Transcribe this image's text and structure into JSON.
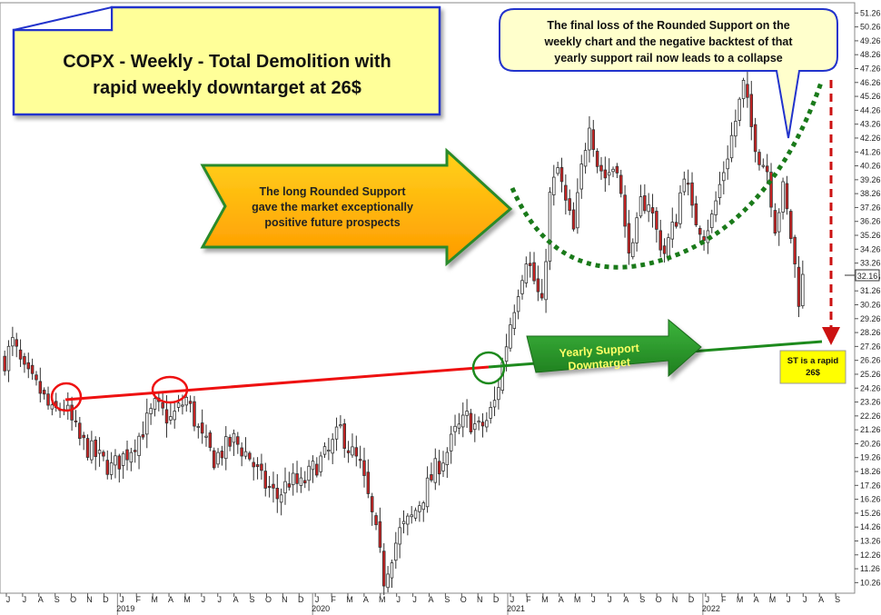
{
  "chart_data": {
    "type": "candlestick",
    "title": "COPX - Weekly - Total Demolition with rapid weekly downtarget at 26$",
    "yticks": [
      10.26,
      11.26,
      12.26,
      13.26,
      14.26,
      15.26,
      16.26,
      17.26,
      18.26,
      19.26,
      20.26,
      21.26,
      22.26,
      23.26,
      24.26,
      25.26,
      26.26,
      27.26,
      28.26,
      29.26,
      30.26,
      31.26,
      32.26,
      33.26,
      34.26,
      35.26,
      36.26,
      37.26,
      38.26,
      39.26,
      40.26,
      41.26,
      42.26,
      43.26,
      44.26,
      45.26,
      46.26,
      47.26,
      48.26,
      49.26,
      50.26,
      51.26
    ],
    "ylim": [
      9.5,
      52
    ],
    "last_price": "32.16",
    "month_labels": [
      "J",
      "J",
      "A",
      "S",
      "O",
      "N",
      "D",
      "J",
      "F",
      "M",
      "A",
      "M",
      "J",
      "J",
      "A",
      "S",
      "O",
      "N",
      "D",
      "J",
      "F",
      "M",
      "A",
      "M",
      "J",
      "J",
      "A",
      "S",
      "O",
      "N",
      "D",
      "J",
      "F",
      "M",
      "A",
      "M",
      "J",
      "J",
      "A",
      "S",
      "O",
      "N",
      "D",
      "J",
      "F",
      "M",
      "A",
      "M",
      "J",
      "J",
      "A",
      "S"
    ],
    "year_labels": [
      "2019",
      "2020",
      "2021",
      "2022"
    ],
    "price_path": [
      [
        0,
        26.3
      ],
      [
        2,
        27.5
      ],
      [
        5,
        25.3
      ],
      [
        9,
        24.0
      ],
      [
        12,
        22.4
      ],
      [
        15,
        23.0
      ],
      [
        19,
        20.5
      ],
      [
        23,
        19.4
      ],
      [
        27,
        18.5
      ],
      [
        31,
        19.6
      ],
      [
        34,
        20.8
      ],
      [
        38,
        22.9
      ],
      [
        42,
        22.0
      ],
      [
        46,
        23.5
      ],
      [
        50,
        20.5
      ],
      [
        53,
        19.2
      ],
      [
        58,
        20.5
      ],
      [
        62,
        19.3
      ],
      [
        65,
        17.6
      ],
      [
        69,
        16.4
      ],
      [
        72,
        17.6
      ],
      [
        75,
        17.2
      ],
      [
        79,
        18.8
      ],
      [
        82,
        19.6
      ],
      [
        85,
        21.3
      ],
      [
        87,
        20.0
      ],
      [
        90,
        18.6
      ],
      [
        92,
        16.3
      ],
      [
        94,
        13.7
      ],
      [
        96,
        10.5
      ],
      [
        98,
        12.4
      ],
      [
        100,
        13.9
      ],
      [
        103,
        14.9
      ],
      [
        106,
        16.6
      ],
      [
        109,
        18.4
      ],
      [
        112,
        19.7
      ],
      [
        114,
        21.0
      ],
      [
        117,
        22.1
      ],
      [
        120,
        21.3
      ],
      [
        122,
        21.9
      ],
      [
        124,
        23.2
      ],
      [
        126,
        26.0
      ],
      [
        128,
        29.0
      ],
      [
        130,
        31.5
      ],
      [
        132,
        33.8
      ],
      [
        134,
        32.0
      ],
      [
        136,
        30.0
      ],
      [
        138,
        38.0
      ],
      [
        140,
        40.0
      ],
      [
        142,
        37.5
      ],
      [
        144,
        35.5
      ],
      [
        146,
        40.0
      ],
      [
        148,
        43.7
      ],
      [
        150,
        40.5
      ],
      [
        152,
        39.5
      ],
      [
        155,
        40.5
      ],
      [
        157,
        35.5
      ],
      [
        159,
        34.0
      ],
      [
        161,
        37.5
      ],
      [
        163,
        37.8
      ],
      [
        165,
        35.5
      ],
      [
        167,
        34.0
      ],
      [
        170,
        36.5
      ],
      [
        172,
        40.0
      ],
      [
        174,
        36.8
      ],
      [
        177,
        35.5
      ],
      [
        179,
        36.5
      ],
      [
        182,
        40.0
      ],
      [
        185,
        43.5
      ],
      [
        187,
        46.0
      ],
      [
        189,
        43.0
      ],
      [
        191,
        41.0
      ],
      [
        193,
        40.0
      ],
      [
        195,
        36.0
      ],
      [
        197,
        38.5
      ],
      [
        199,
        35.2
      ],
      [
        201,
        30.8
      ],
      [
        202,
        32.16
      ]
    ],
    "annotations": {
      "rounded_support": "The long Rounded Support gave the market exceptionally positive future prospects",
      "final_loss": "The final loss of the Rounded Support on the weekly chart and the negative backtest of that yearly support rail now leads to a collapse",
      "yearly_support": "Yearly Support Downtarget",
      "target": "ST is a rapid 26$"
    }
  },
  "title": {
    "line1": "COPX - Weekly - Total Demolition with",
    "line2": "rapid weekly downtarget at 26$"
  },
  "callout_top": {
    "line1": "The final loss of the Rounded Support on the",
    "line2": "weekly chart and the negative backtest of that",
    "line3": "yearly support rail now leads to a collapse"
  },
  "arrow_orange": {
    "line1": "The long Rounded Support",
    "line2": "gave the market exceptionally",
    "line3": "positive future prospects"
  },
  "arrow_green": {
    "line1": "Yearly Support",
    "line2": "Downtarget"
  },
  "target_box": {
    "line1": "ST is a rapid",
    "line2": "26$"
  },
  "colors": {
    "up_candle": "#ffffff",
    "down_candle": "#cc2222",
    "support_red": "#ee1111",
    "support_green": "#1d8a1d",
    "rounded_support": "#1a7a1a",
    "title_box": "#ffff99",
    "target_box": "#ffff00"
  }
}
